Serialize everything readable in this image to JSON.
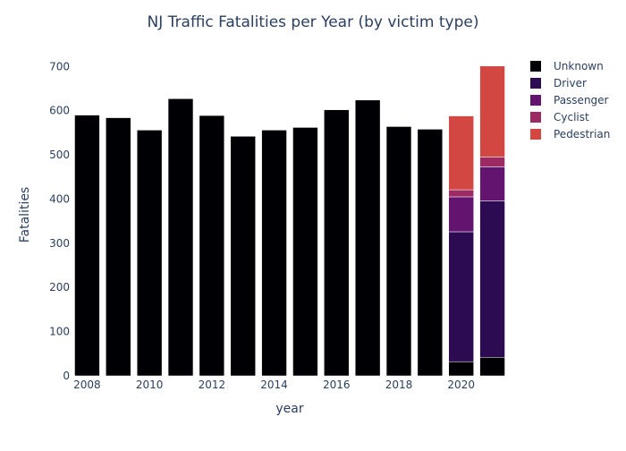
{
  "chart_data": {
    "type": "bar",
    "stacked": true,
    "title": "NJ Traffic Fatalities per Year (by victim type)",
    "xlabel": "year",
    "ylabel": "Fatalities",
    "x": [
      2008,
      2009,
      2010,
      2011,
      2012,
      2013,
      2014,
      2015,
      2016,
      2017,
      2018,
      2019,
      2020,
      2021
    ],
    "x_ticks": [
      2008,
      2010,
      2012,
      2014,
      2016,
      2018,
      2020
    ],
    "y_ticks": [
      0,
      100,
      200,
      300,
      400,
      500,
      600,
      700
    ],
    "xlim": [
      2007.5,
      2021.5
    ],
    "ylim": [
      0,
      737
    ],
    "grid": false,
    "legend_position": "top-right",
    "series": [
      {
        "name": "Unknown",
        "color": "#000004",
        "values": [
          590,
          584,
          556,
          627,
          589,
          542,
          556,
          562,
          602,
          624,
          564,
          558,
          32,
          42
        ]
      },
      {
        "name": "Driver",
        "color": "#2c0b52",
        "values": [
          0,
          0,
          0,
          0,
          0,
          0,
          0,
          0,
          0,
          0,
          0,
          0,
          294,
          354
        ]
      },
      {
        "name": "Passenger",
        "color": "#63146e",
        "values": [
          0,
          0,
          0,
          0,
          0,
          0,
          0,
          0,
          0,
          0,
          0,
          0,
          79,
          77
        ]
      },
      {
        "name": "Cyclist",
        "color": "#9c2a63",
        "values": [
          0,
          0,
          0,
          0,
          0,
          0,
          0,
          0,
          0,
          0,
          0,
          0,
          16,
          22
        ]
      },
      {
        "name": "Pedestrian",
        "color": "#d34743",
        "values": [
          0,
          0,
          0,
          0,
          0,
          0,
          0,
          0,
          0,
          0,
          0,
          0,
          167,
          206
        ]
      }
    ]
  }
}
